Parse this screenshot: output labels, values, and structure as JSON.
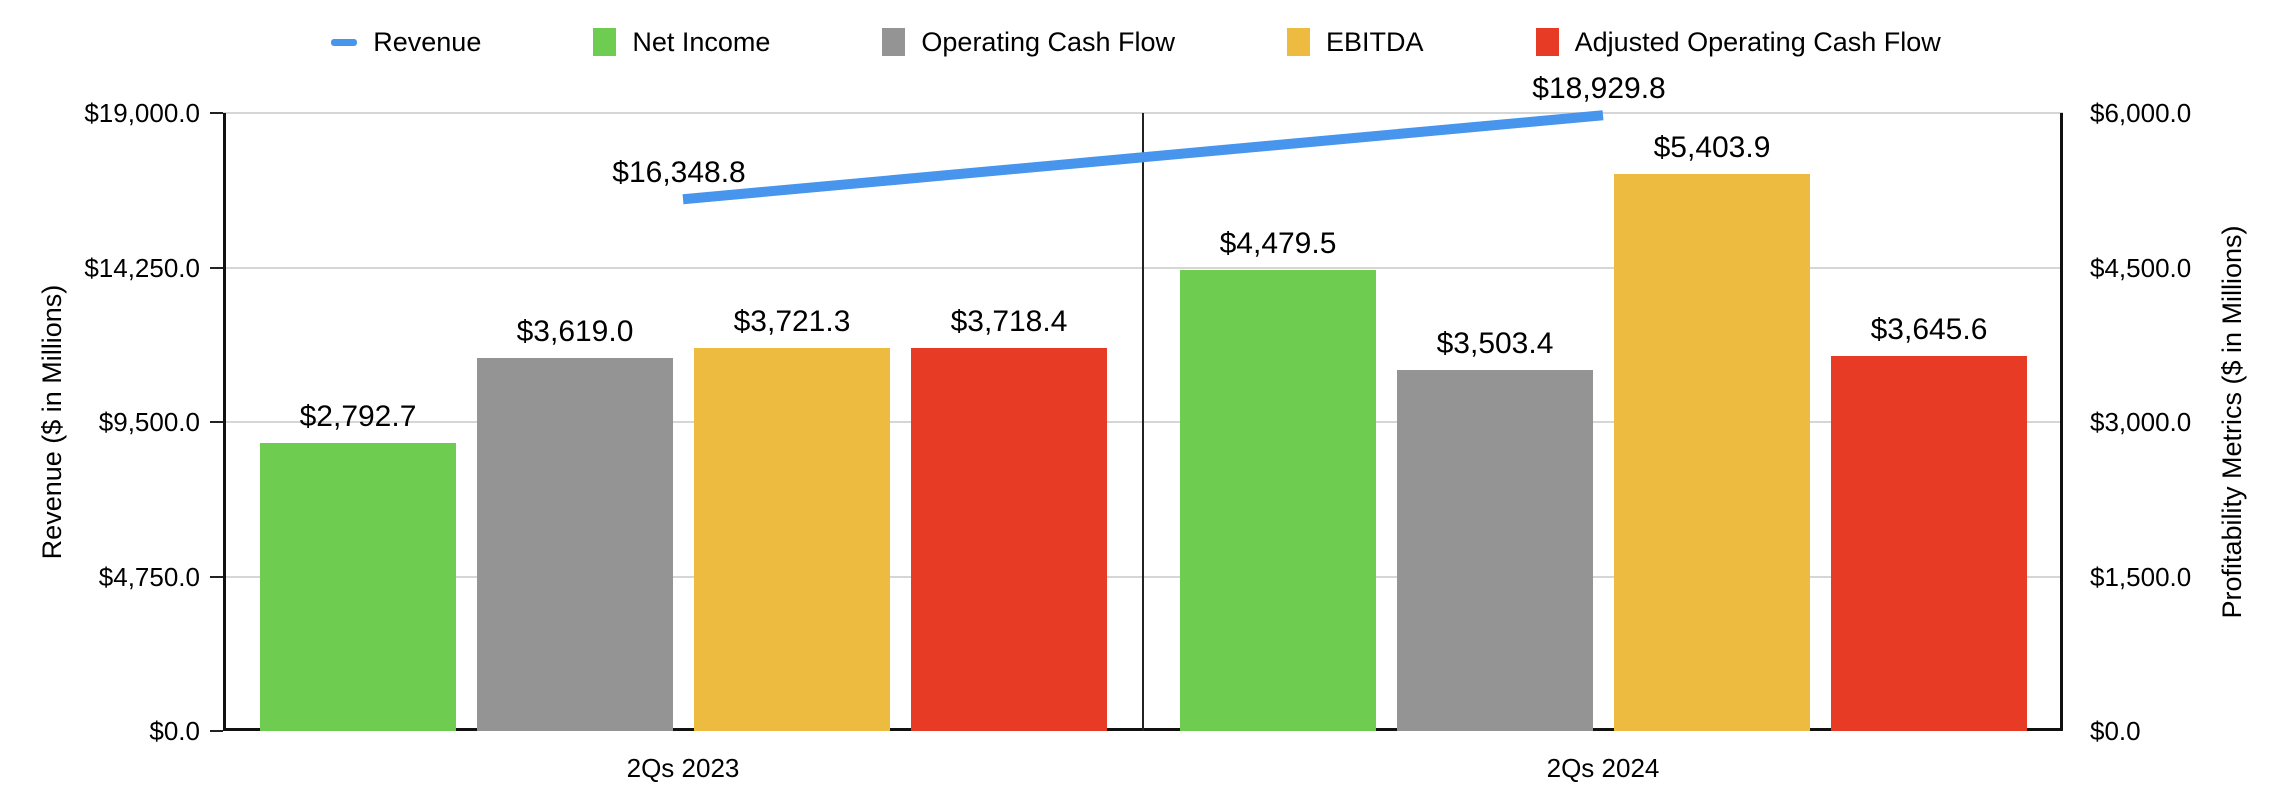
{
  "chart_data": {
    "type": "bar+line combo",
    "categories": [
      "2Qs 2023",
      "2Qs 2024"
    ],
    "bar_series": [
      {
        "name": "Net Income",
        "color": "#6ecc51",
        "values": [
          2792.7,
          4479.5
        ],
        "labels": [
          "$2,792.7",
          "$4,479.5"
        ],
        "axis": "right"
      },
      {
        "name": "Operating Cash Flow",
        "color": "#949494",
        "values": [
          3619.0,
          3503.4
        ],
        "labels": [
          "$3,619.0",
          "$3,503.4"
        ],
        "axis": "right"
      },
      {
        "name": "EBITDA",
        "color": "#edbb3f",
        "values": [
          3721.3,
          5403.9
        ],
        "labels": [
          "$3,721.3",
          "$5,403.9"
        ],
        "axis": "right"
      },
      {
        "name": "Adjusted Operating Cash Flow",
        "color": "#e73b25",
        "values": [
          3718.4,
          3645.6
        ],
        "labels": [
          "$3,718.4",
          "$3,645.6"
        ],
        "axis": "right"
      }
    ],
    "line_series": [
      {
        "name": "Revenue",
        "color": "#4795ec",
        "values": [
          16348.8,
          18929.8
        ],
        "labels": [
          "$16,348.8",
          "$18,929.8"
        ],
        "axis": "left"
      }
    ],
    "left_axis": {
      "title": "Revenue ($ in Millions)",
      "max": 19000,
      "ticks": [
        0,
        4750,
        9500,
        14250,
        19000
      ],
      "tick_labels": [
        "$0.0",
        "$4,750.0",
        "$9,500.0",
        "$14,250.0",
        "$19,000.0"
      ]
    },
    "right_axis": {
      "title": "Profitability Metrics ($ in Millions)",
      "max": 6000,
      "ticks": [
        0,
        1500,
        3000,
        4500,
        6000
      ],
      "tick_labels": [
        "$0.0",
        "$1,500.0",
        "$3,000.0",
        "$4,500.0",
        "$6,000.0"
      ]
    },
    "legend": [
      {
        "name": "Revenue",
        "swatch": "line",
        "color": "#4795ec"
      },
      {
        "name": "Net Income",
        "swatch": "square",
        "color": "#6ecc51"
      },
      {
        "name": "Operating Cash Flow",
        "swatch": "square",
        "color": "#949494"
      },
      {
        "name": "EBITDA",
        "swatch": "square",
        "color": "#edbb3f"
      },
      {
        "name": "Adjusted Operating Cash Flow",
        "swatch": "square",
        "color": "#e73b25"
      }
    ],
    "grid": true,
    "legend_position": "top",
    "colors": {
      "gridline": "#d6d6d6",
      "axis": "#111111",
      "divider": "#222222",
      "text": "#000000",
      "background": "#ffffff"
    }
  }
}
